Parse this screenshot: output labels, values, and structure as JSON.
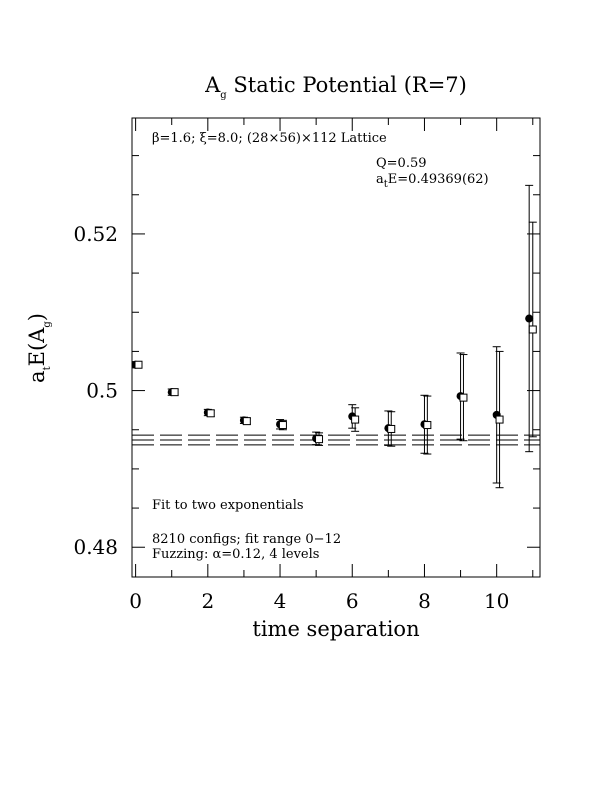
{
  "chart_data": {
    "type": "scatter",
    "title": {
      "main": "A",
      "sub": "g",
      "rest": " Static Potential (R=7)"
    },
    "xlabel": "time separation",
    "ylabel": {
      "pre": "a",
      "pre_sub": "t",
      "mid": "E(A",
      "mid_sub": "g",
      "post": ")"
    },
    "xlim": [
      -0.1,
      11.2
    ],
    "ylim": [
      0.4762,
      0.5348
    ],
    "x_ticks": [
      0,
      2,
      4,
      6,
      8,
      10
    ],
    "y_ticks": [
      {
        "value": 0.48,
        "label": "0.48"
      },
      {
        "value": 0.5,
        "label": "0.5"
      },
      {
        "value": 0.52,
        "label": "0.52"
      }
    ],
    "annotations": {
      "lattice": "β=1.6; ξ=8.0; (28×56)×112 Lattice",
      "q": "Q=0.59",
      "energy": {
        "pre": "a",
        "sub": "t",
        "post": "E=0.49369(62)"
      },
      "fit": "Fit to two exponentials",
      "configs": "8210 configs; fit range 0−12",
      "fuzzing": "Fuzzing: α=0.12, 4 levels"
    },
    "fit": {
      "center": 0.49369,
      "error": 0.00062
    },
    "series": [
      {
        "marker": "filled-circle",
        "points": [
          {
            "x": 0,
            "y": 0.5033,
            "err": 0.0004
          },
          {
            "x": 1,
            "y": 0.4998,
            "err": 0.0004
          },
          {
            "x": 2,
            "y": 0.4972,
            "err": 0.0004
          },
          {
            "x": 3,
            "y": 0.4962,
            "err": 0.0004
          },
          {
            "x": 4,
            "y": 0.4957,
            "err": 0.0006
          },
          {
            "x": 5,
            "y": 0.4939,
            "err": 0.0008
          },
          {
            "x": 6,
            "y": 0.4967,
            "err": 0.0015
          },
          {
            "x": 7,
            "y": 0.4952,
            "err": 0.0022
          },
          {
            "x": 8,
            "y": 0.4957,
            "err": 0.0037
          },
          {
            "x": 9,
            "y": 0.4993,
            "err": 0.0055
          },
          {
            "x": 10,
            "y": 0.4969,
            "err": 0.0087
          },
          {
            "x": 10.9,
            "y": 0.5092,
            "err": 0.017
          }
        ]
      },
      {
        "marker": "open-square",
        "points": [
          {
            "x": 0.08,
            "y": 0.5033,
            "err": 0.0004
          },
          {
            "x": 1.08,
            "y": 0.4998,
            "err": 0.0004
          },
          {
            "x": 2.08,
            "y": 0.4971,
            "err": 0.0004
          },
          {
            "x": 3.08,
            "y": 0.4961,
            "err": 0.0004
          },
          {
            "x": 4.08,
            "y": 0.4956,
            "err": 0.0006
          },
          {
            "x": 5.08,
            "y": 0.4938,
            "err": 0.0008
          },
          {
            "x": 6.08,
            "y": 0.4963,
            "err": 0.0015
          },
          {
            "x": 7.08,
            "y": 0.4951,
            "err": 0.0022
          },
          {
            "x": 8.08,
            "y": 0.4956,
            "err": 0.0037
          },
          {
            "x": 9.08,
            "y": 0.4991,
            "err": 0.0055
          },
          {
            "x": 10.08,
            "y": 0.4963,
            "err": 0.0087
          },
          {
            "x": 11.0,
            "y": 0.5078,
            "err": 0.0137
          }
        ]
      }
    ]
  }
}
